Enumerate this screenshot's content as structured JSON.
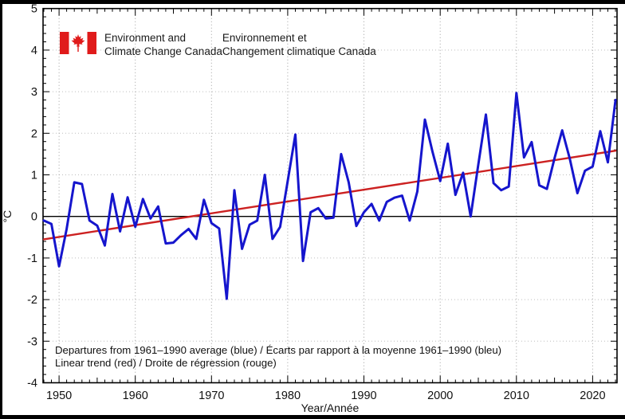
{
  "page": {
    "background": "#ffffff",
    "border_color": "#000000"
  },
  "header": {
    "logo": "canada-flag",
    "flag_red": "#e01b1b",
    "english_line1": "Environment and",
    "english_line2": "Climate Change Canada",
    "french_line1": "Environnement et",
    "french_line2": "Changement climatique Canada"
  },
  "footer": {
    "line1": "Departures from 1961–1990 average (blue) / Écarts par rapport à la moyenne 1961–1990 (bleu)",
    "line2": "Linear trend (red) / Droite de régression (rouge)"
  },
  "chart_data": {
    "type": "line",
    "title": "",
    "xlabel": "Year/Année",
    "ylabel": "°C",
    "xlim": [
      1947.9,
      2023.2
    ],
    "ylim": [
      -4,
      5
    ],
    "x_major_ticks": [
      1950,
      1960,
      1970,
      1980,
      1990,
      2000,
      2010,
      2020
    ],
    "y_major_ticks": [
      -4,
      -3,
      -2,
      -1,
      0,
      1,
      2,
      3,
      4,
      5
    ],
    "grid": "dotted",
    "zero_line": true,
    "colors": {
      "departures": "#1515cd",
      "trend": "#cc2121",
      "zero_line": "#000000",
      "grid_vertical": "#9e9e9e",
      "grid_horizontal": "#bdbdbd",
      "frame": "#000000"
    },
    "series": [
      {
        "name": "Departures from 1961–1990 average",
        "color_key": "departures",
        "x": [
          1948,
          1949,
          1950,
          1951,
          1952,
          1953,
          1954,
          1955,
          1956,
          1957,
          1958,
          1959,
          1960,
          1961,
          1962,
          1963,
          1964,
          1965,
          1966,
          1967,
          1968,
          1969,
          1970,
          1971,
          1972,
          1973,
          1974,
          1975,
          1976,
          1977,
          1978,
          1979,
          1980,
          1981,
          1982,
          1983,
          1984,
          1985,
          1986,
          1987,
          1988,
          1989,
          1990,
          1991,
          1992,
          1993,
          1994,
          1995,
          1996,
          1997,
          1998,
          1999,
          2000,
          2001,
          2002,
          2003,
          2004,
          2005,
          2006,
          2007,
          2008,
          2009,
          2010,
          2011,
          2012,
          2013,
          2014,
          2015,
          2016,
          2017,
          2018,
          2019,
          2020,
          2021,
          2022,
          2023
        ],
        "values": [
          -0.1,
          -0.18,
          -1.2,
          -0.3,
          0.82,
          0.78,
          -0.1,
          -0.22,
          -0.7,
          0.54,
          -0.36,
          0.46,
          -0.25,
          0.42,
          -0.05,
          0.24,
          -0.65,
          -0.63,
          -0.45,
          -0.3,
          -0.54,
          0.4,
          -0.16,
          -0.29,
          -1.98,
          0.63,
          -0.78,
          -0.2,
          -0.1,
          1.0,
          -0.54,
          -0.25,
          0.85,
          1.97,
          -1.07,
          0.1,
          0.2,
          -0.05,
          -0.03,
          1.5,
          0.82,
          -0.23,
          0.1,
          0.3,
          -0.1,
          0.35,
          0.45,
          0.5,
          -0.1,
          0.6,
          2.33,
          1.55,
          0.85,
          1.75,
          0.52,
          1.05,
          0.0,
          1.25,
          2.45,
          0.8,
          0.63,
          0.72,
          2.97,
          1.42,
          1.79,
          0.75,
          0.66,
          1.4,
          2.07,
          1.39,
          0.56,
          1.1,
          1.2,
          2.05,
          1.3,
          2.8
        ]
      },
      {
        "name": "Linear trend",
        "color_key": "trend",
        "x": [
          1948,
          2023
        ],
        "values": [
          -0.55,
          1.58
        ]
      }
    ]
  }
}
